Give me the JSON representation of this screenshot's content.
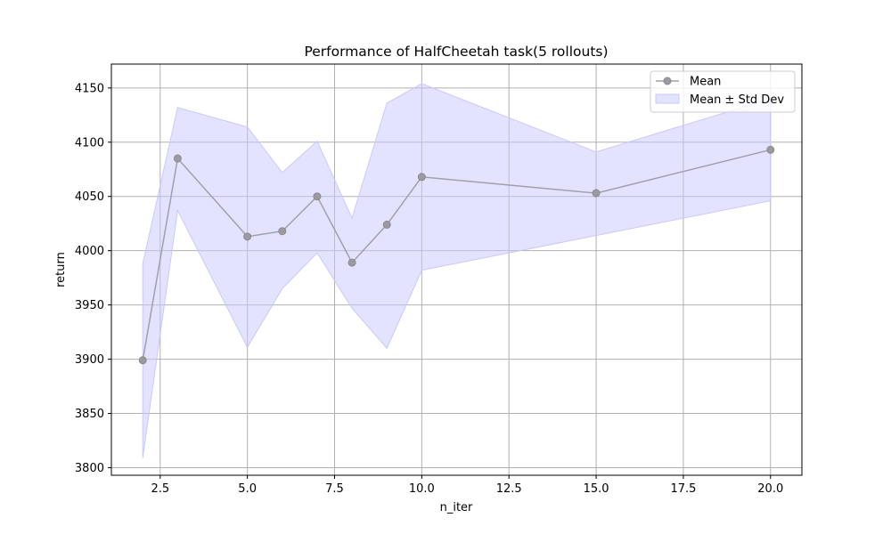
{
  "chart_data": {
    "type": "line",
    "title": "Performance of HalfCheetah task(5 rollouts)",
    "xlabel": "n_iter",
    "ylabel": "return",
    "xlim": [
      1.1,
      20.9
    ],
    "ylim": [
      3793,
      4172
    ],
    "xticks": [
      2.5,
      5.0,
      7.5,
      10.0,
      12.5,
      15.0,
      17.5,
      20.0
    ],
    "xtick_labels": [
      "2.5",
      "5.0",
      "7.5",
      "10.0",
      "12.5",
      "15.0",
      "17.5",
      "20.0"
    ],
    "yticks": [
      3800,
      3850,
      3900,
      3950,
      4000,
      4050,
      4100,
      4150
    ],
    "ytick_labels": [
      "3800",
      "3850",
      "3900",
      "3950",
      "4000",
      "4050",
      "4100",
      "4150"
    ],
    "grid": true,
    "legend_position": "top-right",
    "x": [
      2,
      3,
      5,
      6,
      7,
      8,
      9,
      10,
      15,
      20
    ],
    "series": [
      {
        "name": "Mean",
        "kind": "line",
        "color": "#a0a0a8",
        "values": [
          3899,
          4085,
          4013,
          4018,
          4050,
          3989,
          4024,
          4068,
          4053,
          4093
        ]
      },
      {
        "name": "Mean ± Std Dev",
        "kind": "band",
        "color": "#c8c8ff",
        "lower": [
          3809,
          4037,
          3911,
          3965,
          3998,
          3947,
          3910,
          3982,
          4014,
          4046
        ],
        "upper": [
          3988,
          4132,
          4114,
          4072,
          4101,
          4030,
          4136,
          4154,
          4091,
          4140
        ]
      }
    ]
  }
}
